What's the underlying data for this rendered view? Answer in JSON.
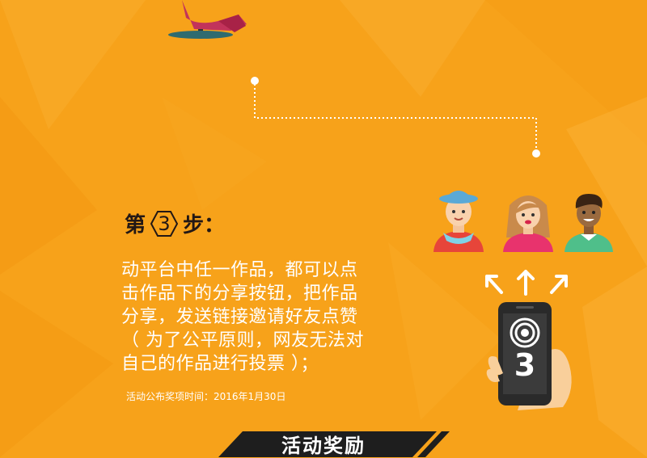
{
  "step": {
    "prefix": "第",
    "number": "3",
    "suffix": "步："
  },
  "description": [
    "动平台中任一作品，都可以点",
    "击作品下的分享按钮，把作品",
    "分享，发送链接邀请好友点赞",
    "（ 为了公平原则，网友无法对",
    "自己的作品进行投票 ）；"
  ],
  "note": "活动公布奖项时间：2016年1月30日",
  "phone_number": "3",
  "banner": "活动奖励",
  "colors": {
    "background": "#f7a21a",
    "banner": "#1e1e1e",
    "text_dark": "#231815",
    "text_light": "#ffffff"
  },
  "icons": [
    "chair-icon",
    "friend-hat-icon",
    "friend-girl-icon",
    "friend-boy-icon",
    "share-arrow-icon",
    "phone-hand-icon"
  ]
}
